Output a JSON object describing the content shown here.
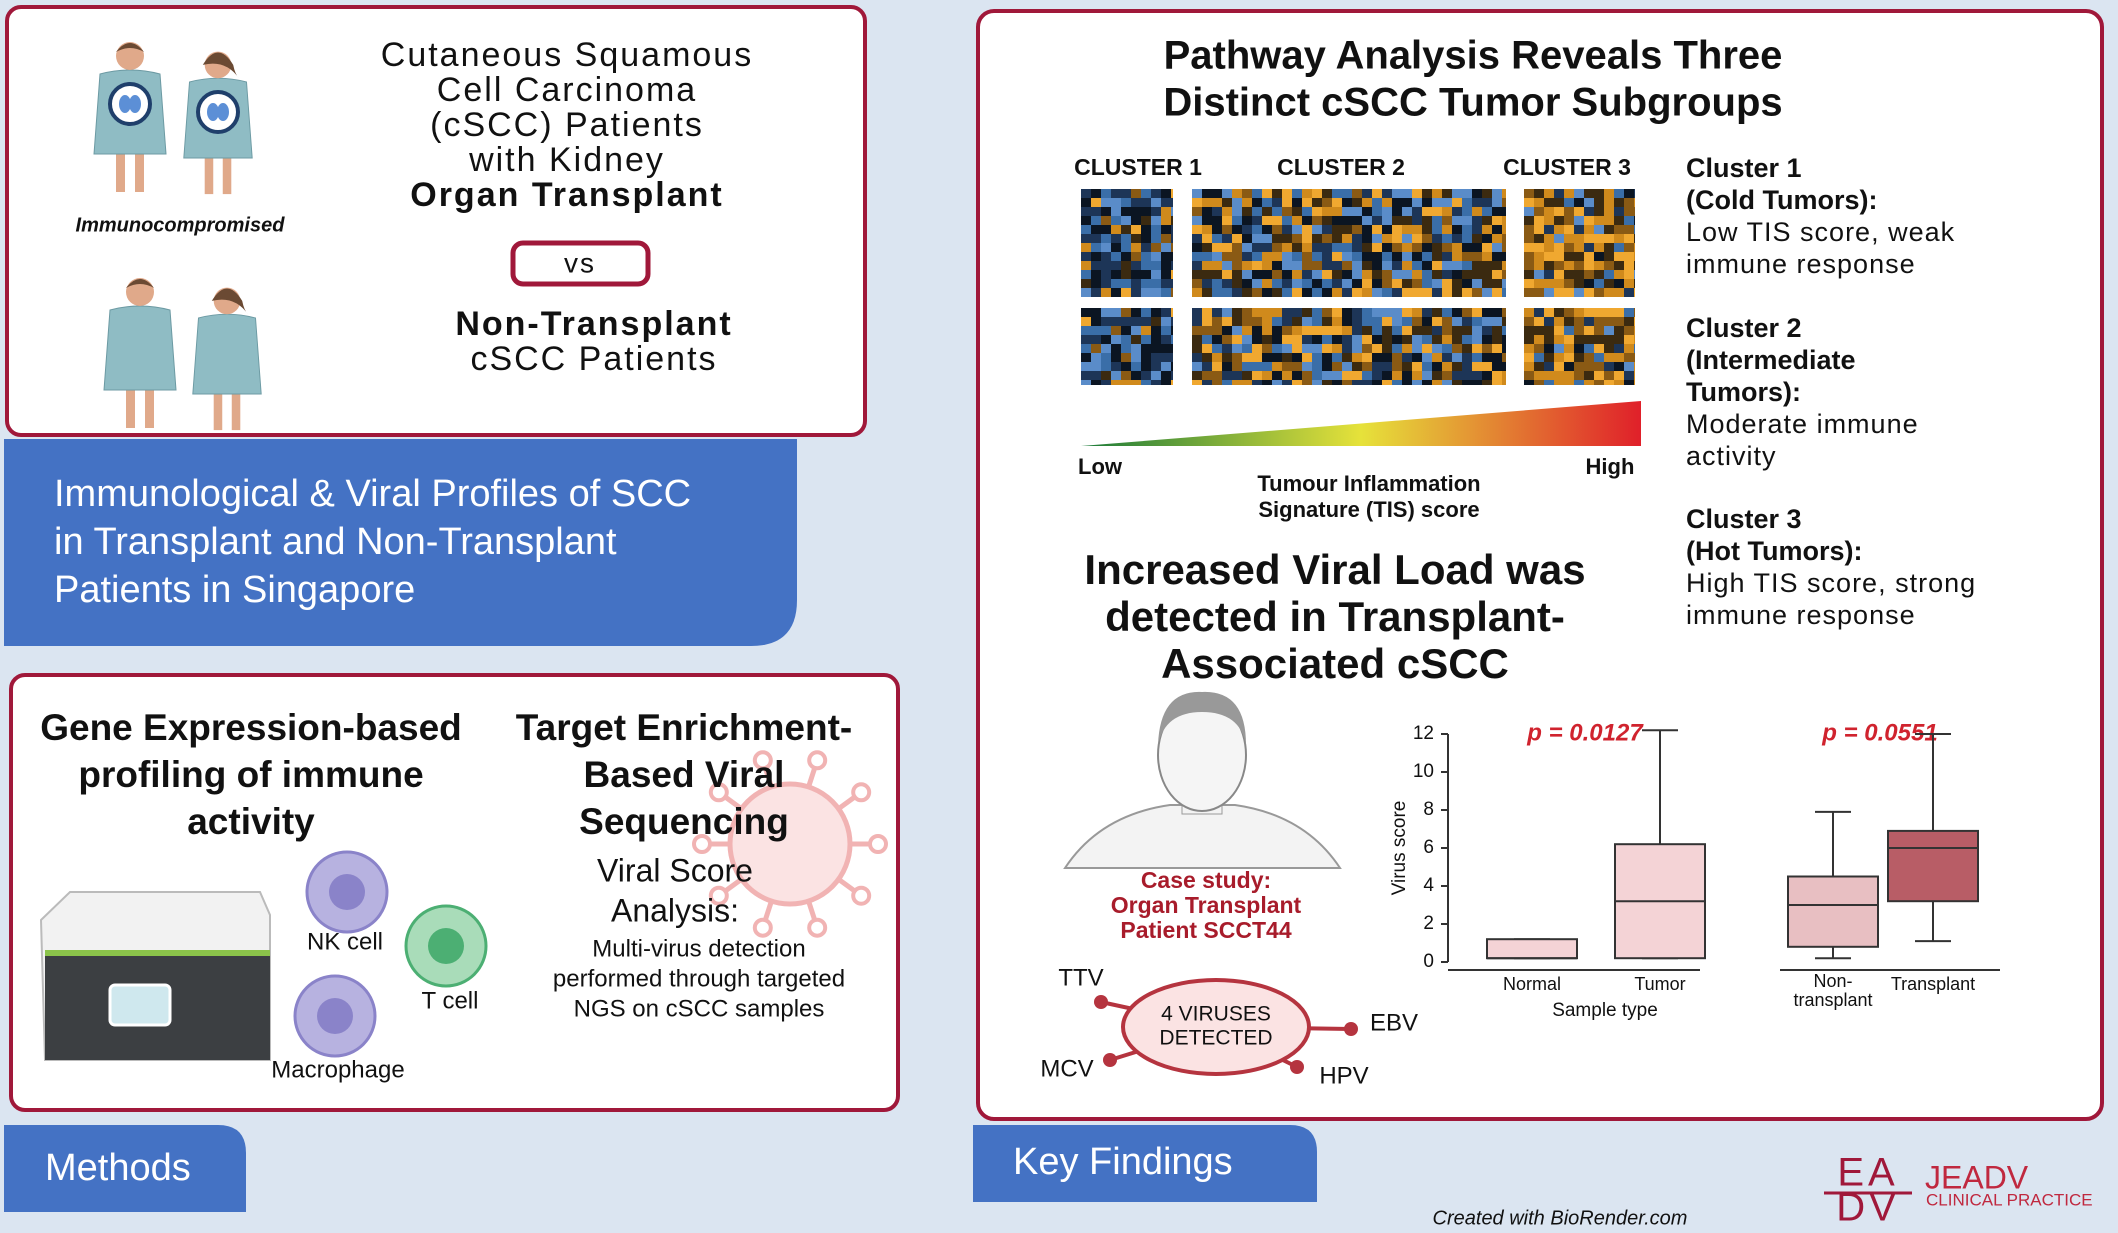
{
  "left_top": {
    "title_lines": [
      "Cutaneous Squamous",
      "Cell Carcinoma",
      "(cSCC) Patients",
      "with Kidney"
    ],
    "title_bold": "Organ Transplant",
    "tag": "Immunocompromised",
    "vs": "vs",
    "comparison_lines": [
      "Non-Transplant",
      "cSCC Patients"
    ]
  },
  "banner": {
    "lines": [
      "Immunological & Viral Profiles of SCC",
      "in Transplant and Non-Transplant",
      "Patients in Singapore"
    ]
  },
  "methods": {
    "tab": "Methods",
    "gene": {
      "title_lines": [
        "Gene Expression-based",
        "profiling of immune",
        "activity"
      ],
      "cells": [
        "NK cell",
        "T cell",
        "Macrophage"
      ]
    },
    "viral": {
      "title_lines": [
        "Target Enrichment-",
        "Based Viral",
        "Sequencing"
      ],
      "subtitle_lines": [
        "Viral Score",
        "Analysis:"
      ],
      "description_lines": [
        "Multi-virus detection",
        "performed through targeted",
        "NGS on cSCC samples"
      ]
    }
  },
  "findings": {
    "tab": "Key Findings",
    "pathway": {
      "title_lines": [
        "Pathway Analysis Reveals Three",
        "Distinct cSCC Tumor Subgroups"
      ],
      "cluster_labels": [
        "CLUSTER 1",
        "CLUSTER 2",
        "CLUSTER 3"
      ],
      "scale_low": "Low",
      "scale_high": "High",
      "scale_caption": [
        "Tumour Inflammation",
        "Signature (TIS) score"
      ],
      "clusters": [
        {
          "title_lines": [
            "Cluster 1",
            "(Cold Tumors):"
          ],
          "text_lines": [
            "Low TIS score, weak",
            "immune response"
          ]
        },
        {
          "title_lines": [
            "Cluster 2",
            "(Intermediate",
            "Tumors):"
          ],
          "text_lines": [
            "Moderate immune",
            "activity"
          ]
        },
        {
          "title_lines": [
            "Cluster 3",
            "(Hot Tumors):"
          ],
          "text_lines": [
            "High TIS score, strong",
            "immune response"
          ]
        }
      ]
    },
    "viral": {
      "title_lines": [
        "Increased Viral Load was",
        "detected in Transplant-",
        "Associated cSCC"
      ],
      "case_lines": [
        "Case study:",
        "Organ Transplant",
        "Patient SCCT44"
      ],
      "center_lines": [
        "4 VIRUSES",
        "DETECTED"
      ],
      "viruses": [
        "TTV",
        "EBV",
        "MCV",
        "HPV"
      ]
    },
    "boxplot": {
      "type": "box",
      "ylabel": "Virus score",
      "xlabel": "Sample type",
      "p_values": [
        "p = 0.0127",
        "p = 0.0551"
      ],
      "categories": [
        [
          "Normal"
        ],
        [
          "Tumor"
        ],
        [
          "Non-",
          "transplant"
        ],
        [
          "Transplant"
        ]
      ],
      "boxes": [
        {
          "min": 0.2,
          "q1": 0.2,
          "median": 0.2,
          "q3": 1.2,
          "max": 1.2,
          "color": "#f4d3d6"
        },
        {
          "min": 0.2,
          "q1": 0.2,
          "median": 3.2,
          "q3": 6.2,
          "max": 12.2,
          "color": "#f4d3d6"
        },
        {
          "min": 0.2,
          "q1": 0.8,
          "median": 3,
          "q3": 4.5,
          "max": 7.9,
          "color": "#e8bfc2"
        },
        {
          "min": 1.1,
          "q1": 3.2,
          "median": 6,
          "q3": 6.9,
          "max": 12,
          "color": "#b85d66"
        }
      ],
      "ylim": [
        0,
        12
      ],
      "yticks": [
        0,
        2,
        4,
        6,
        8,
        10,
        12
      ]
    }
  },
  "footer": {
    "credit": "Created with BioRender.com",
    "logo_mark": [
      "EA",
      "DV"
    ],
    "logo_name": "JEADV",
    "logo_sub": "CLINICAL PRACTICE"
  }
}
